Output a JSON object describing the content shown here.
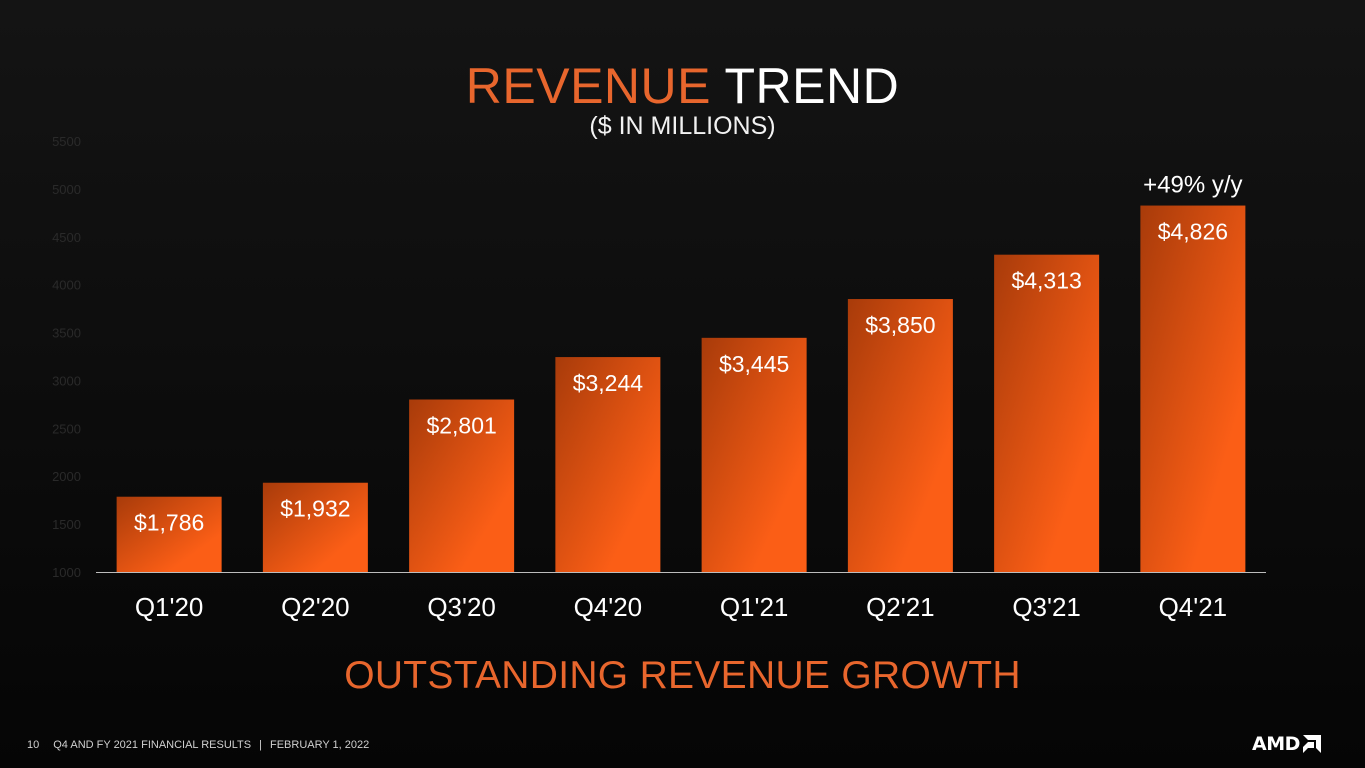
{
  "slide": {
    "title_accent": "REVENUE",
    "title_rest": "TREND",
    "subtitle": "($ IN MILLIONS)",
    "tagline": "OUTSTANDING REVENUE GROWTH",
    "accent_color": "#e8662d",
    "bar_color_light": "#fb5e16",
    "bar_color_dark": "#a83b0a"
  },
  "footer": {
    "page_number": "10",
    "doc_title": "Q4 AND FY 2021 FINANCIAL RESULTS",
    "separator": "|",
    "date": "FEBRUARY 1, 2022",
    "logo_text": "AMD",
    "logo_icon": "amd-arrow-icon"
  },
  "chart_data": {
    "type": "bar",
    "categories": [
      "Q1'20",
      "Q2'20",
      "Q3'20",
      "Q4'20",
      "Q1'21",
      "Q2'21",
      "Q3'21",
      "Q4'21"
    ],
    "values": [
      1786,
      1932,
      2801,
      3244,
      3445,
      3850,
      4313,
      4826
    ],
    "value_labels": [
      "$1,786",
      "$1,932",
      "$2,801",
      "$3,244",
      "$3,445",
      "$3,850",
      "$4,313",
      "$4,826"
    ],
    "ylim": [
      1000,
      5500
    ],
    "yticks": [
      1000,
      1500,
      2000,
      2500,
      3000,
      3500,
      4000,
      4500,
      5000,
      5500
    ],
    "ytick_color": "#2a2a2a",
    "annotation": {
      "text": "+49% y/y",
      "category": "Q4'21"
    },
    "grid": false,
    "legend": "none"
  }
}
